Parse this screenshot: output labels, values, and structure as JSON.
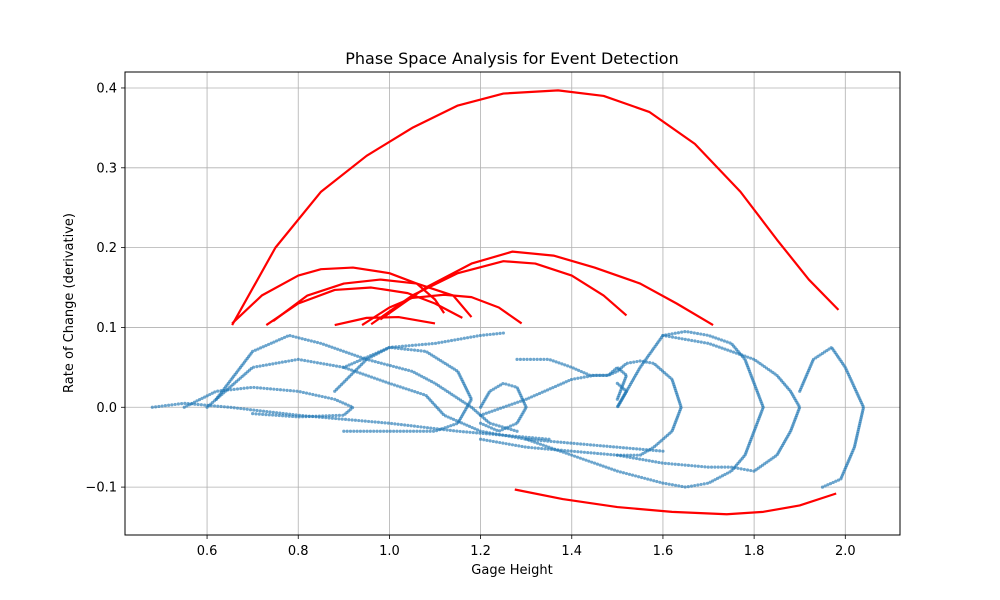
{
  "chart_data": {
    "type": "scatter",
    "title": "Phase Space Analysis for Event Detection",
    "xlabel": "Gage Height",
    "ylabel": "Rate of Change (derivative)",
    "xlim": [
      0.42,
      2.12
    ],
    "ylim": [
      -0.16,
      0.42
    ],
    "xticks": [
      0.6,
      0.8,
      1.0,
      1.2,
      1.4,
      1.6,
      1.8,
      2.0
    ],
    "xtick_labels": [
      "0.6",
      "0.8",
      "1.0",
      "1.2",
      "1.4",
      "1.6",
      "1.8",
      "2.0"
    ],
    "yticks": [
      -0.1,
      0.0,
      0.1,
      0.2,
      0.3,
      0.4
    ],
    "ytick_labels": [
      "−0.1",
      "0.0",
      "0.1",
      "0.2",
      "0.3",
      "0.4"
    ],
    "grid": true,
    "legend": "none",
    "colors": {
      "points": "#1f77b4",
      "event_lines": "#ff0000",
      "grid": "#b0b0b0"
    },
    "scatter_point_count": 1400,
    "scatter_trajectories": [
      {
        "points": [
          [
            0.48,
            0.0
          ],
          [
            0.55,
            0.005
          ],
          [
            0.65,
            0.0
          ],
          [
            0.8,
            -0.01
          ],
          [
            1.0,
            -0.02
          ],
          [
            1.15,
            -0.03
          ],
          [
            1.25,
            -0.035
          ],
          [
            1.35,
            -0.04
          ]
        ]
      },
      {
        "points": [
          [
            0.55,
            0.0
          ],
          [
            0.62,
            0.02
          ],
          [
            0.7,
            0.025
          ],
          [
            0.8,
            0.02
          ],
          [
            0.88,
            0.01
          ],
          [
            0.92,
            0.0
          ],
          [
            0.9,
            -0.01
          ],
          [
            0.8,
            -0.012
          ],
          [
            0.7,
            -0.008
          ]
        ]
      },
      {
        "points": [
          [
            0.6,
            0.0
          ],
          [
            0.7,
            0.05
          ],
          [
            0.8,
            0.06
          ],
          [
            0.9,
            0.05
          ],
          [
            1.0,
            0.03
          ],
          [
            1.08,
            0.015
          ],
          [
            1.12,
            -0.01
          ],
          [
            1.2,
            -0.03
          ],
          [
            1.3,
            -0.04
          ],
          [
            1.4,
            -0.045
          ],
          [
            1.5,
            -0.05
          ],
          [
            1.6,
            -0.055
          ]
        ]
      },
      {
        "points": [
          [
            0.62,
            0.01
          ],
          [
            0.7,
            0.07
          ],
          [
            0.78,
            0.09
          ],
          [
            0.85,
            0.08
          ],
          [
            0.95,
            0.06
          ],
          [
            1.05,
            0.045
          ],
          [
            1.1,
            0.03
          ],
          [
            1.18,
            0.0
          ],
          [
            1.22,
            -0.02
          ],
          [
            1.28,
            -0.03
          ]
        ]
      },
      {
        "points": [
          [
            0.88,
            0.02
          ],
          [
            0.95,
            0.06
          ],
          [
            1.0,
            0.075
          ],
          [
            1.08,
            0.07
          ],
          [
            1.15,
            0.045
          ],
          [
            1.18,
            0.01
          ],
          [
            1.15,
            -0.02
          ],
          [
            1.1,
            -0.03
          ],
          [
            1.0,
            -0.03
          ],
          [
            0.9,
            -0.03
          ]
        ]
      },
      {
        "points": [
          [
            0.9,
            0.05
          ],
          [
            1.0,
            0.075
          ],
          [
            1.1,
            0.08
          ],
          [
            1.2,
            0.09
          ],
          [
            1.25,
            0.093
          ]
        ]
      },
      {
        "points": [
          [
            1.2,
            0.0
          ],
          [
            1.22,
            0.02
          ],
          [
            1.25,
            0.03
          ],
          [
            1.28,
            0.025
          ],
          [
            1.3,
            0.0
          ],
          [
            1.28,
            -0.02
          ],
          [
            1.24,
            -0.03
          ],
          [
            1.2,
            -0.02
          ]
        ]
      },
      {
        "points": [
          [
            1.2,
            -0.01
          ],
          [
            1.25,
            0.0
          ],
          [
            1.3,
            0.01
          ],
          [
            1.4,
            0.035
          ],
          [
            1.45,
            0.04
          ],
          [
            1.48,
            0.04
          ],
          [
            1.5,
            0.045
          ],
          [
            1.52,
            0.055
          ],
          [
            1.55,
            0.058
          ],
          [
            1.58,
            0.055
          ],
          [
            1.62,
            0.035
          ],
          [
            1.64,
            0.0
          ],
          [
            1.62,
            -0.03
          ],
          [
            1.58,
            -0.05
          ],
          [
            1.55,
            -0.06
          ],
          [
            1.5,
            -0.06
          ],
          [
            1.4,
            -0.055
          ],
          [
            1.3,
            -0.05
          ],
          [
            1.2,
            -0.04
          ]
        ]
      },
      {
        "points": [
          [
            1.28,
            0.06
          ],
          [
            1.35,
            0.06
          ],
          [
            1.4,
            0.05
          ],
          [
            1.44,
            0.04
          ],
          [
            1.48,
            0.04
          ],
          [
            1.5,
            0.05
          ],
          [
            1.52,
            0.04
          ],
          [
            1.5,
            0.01
          ]
        ]
      },
      {
        "points": [
          [
            1.5,
            0.03
          ],
          [
            1.52,
            0.02
          ],
          [
            1.5,
            0.0
          ],
          [
            1.55,
            0.05
          ],
          [
            1.6,
            0.09
          ],
          [
            1.65,
            0.095
          ],
          [
            1.7,
            0.09
          ],
          [
            1.75,
            0.08
          ],
          [
            1.78,
            0.06
          ],
          [
            1.8,
            0.03
          ],
          [
            1.82,
            0.0
          ],
          [
            1.8,
            -0.03
          ],
          [
            1.78,
            -0.06
          ],
          [
            1.75,
            -0.08
          ],
          [
            1.7,
            -0.095
          ],
          [
            1.65,
            -0.1
          ],
          [
            1.6,
            -0.095
          ],
          [
            1.5,
            -0.08
          ],
          [
            1.4,
            -0.06
          ],
          [
            1.3,
            -0.04
          ]
        ]
      },
      {
        "points": [
          [
            1.6,
            0.09
          ],
          [
            1.7,
            0.08
          ],
          [
            1.8,
            0.06
          ],
          [
            1.85,
            0.04
          ],
          [
            1.88,
            0.02
          ],
          [
            1.9,
            0.0
          ],
          [
            1.88,
            -0.03
          ],
          [
            1.85,
            -0.06
          ],
          [
            1.8,
            -0.08
          ],
          [
            1.75,
            -0.075
          ],
          [
            1.7,
            -0.075
          ],
          [
            1.6,
            -0.07
          ],
          [
            1.5,
            -0.06
          ]
        ]
      },
      {
        "points": [
          [
            1.9,
            0.02
          ],
          [
            1.93,
            0.06
          ],
          [
            1.97,
            0.075
          ],
          [
            2.0,
            0.05
          ],
          [
            2.04,
            0.0
          ],
          [
            2.02,
            -0.05
          ],
          [
            1.99,
            -0.09
          ],
          [
            1.95,
            -0.1
          ]
        ]
      }
    ],
    "event_lines": [
      {
        "points": [
          [
            0.655,
            0.103
          ],
          [
            0.75,
            0.2
          ],
          [
            0.85,
            0.27
          ],
          [
            0.95,
            0.315
          ],
          [
            1.05,
            0.35
          ],
          [
            1.15,
            0.378
          ],
          [
            1.25,
            0.393
          ],
          [
            1.37,
            0.397
          ],
          [
            1.47,
            0.39
          ],
          [
            1.57,
            0.37
          ],
          [
            1.67,
            0.33
          ],
          [
            1.77,
            0.27
          ],
          [
            1.85,
            0.21
          ],
          [
            1.92,
            0.16
          ],
          [
            1.985,
            0.122
          ]
        ]
      },
      {
        "points": [
          [
            0.655,
            0.105
          ],
          [
            0.72,
            0.14
          ],
          [
            0.8,
            0.165
          ],
          [
            0.85,
            0.173
          ],
          [
            0.92,
            0.175
          ],
          [
            1.0,
            0.168
          ],
          [
            1.06,
            0.155
          ],
          [
            1.1,
            0.135
          ],
          [
            1.12,
            0.118
          ]
        ]
      },
      {
        "points": [
          [
            0.73,
            0.103
          ],
          [
            0.8,
            0.13
          ],
          [
            0.88,
            0.147
          ],
          [
            0.96,
            0.15
          ],
          [
            1.04,
            0.143
          ],
          [
            1.1,
            0.13
          ],
          [
            1.16,
            0.112
          ]
        ]
      },
      {
        "points": [
          [
            0.745,
            0.108
          ],
          [
            0.82,
            0.14
          ],
          [
            0.9,
            0.155
          ],
          [
            0.98,
            0.16
          ],
          [
            1.06,
            0.155
          ],
          [
            1.14,
            0.14
          ],
          [
            1.18,
            0.113
          ]
        ]
      },
      {
        "points": [
          [
            0.88,
            0.103
          ],
          [
            0.95,
            0.112
          ],
          [
            1.02,
            0.113
          ],
          [
            1.07,
            0.108
          ],
          [
            1.1,
            0.105
          ]
        ]
      },
      {
        "points": [
          [
            0.94,
            0.103
          ],
          [
            1.0,
            0.125
          ],
          [
            1.05,
            0.137
          ],
          [
            1.12,
            0.141
          ],
          [
            1.18,
            0.138
          ],
          [
            1.24,
            0.125
          ],
          [
            1.29,
            0.105
          ]
        ]
      },
      {
        "points": [
          [
            0.96,
            0.104
          ],
          [
            1.05,
            0.14
          ],
          [
            1.15,
            0.168
          ],
          [
            1.25,
            0.183
          ],
          [
            1.32,
            0.18
          ],
          [
            1.4,
            0.165
          ],
          [
            1.47,
            0.14
          ],
          [
            1.52,
            0.115
          ]
        ]
      },
      {
        "points": [
          [
            0.98,
            0.11
          ],
          [
            1.08,
            0.15
          ],
          [
            1.18,
            0.18
          ],
          [
            1.27,
            0.195
          ],
          [
            1.36,
            0.19
          ],
          [
            1.45,
            0.175
          ],
          [
            1.55,
            0.155
          ],
          [
            1.63,
            0.13
          ],
          [
            1.71,
            0.103
          ]
        ]
      },
      {
        "points": [
          [
            1.275,
            -0.103
          ],
          [
            1.38,
            -0.115
          ],
          [
            1.5,
            -0.125
          ],
          [
            1.62,
            -0.131
          ],
          [
            1.74,
            -0.134
          ],
          [
            1.82,
            -0.131
          ],
          [
            1.9,
            -0.123
          ],
          [
            1.98,
            -0.108
          ]
        ]
      }
    ]
  }
}
